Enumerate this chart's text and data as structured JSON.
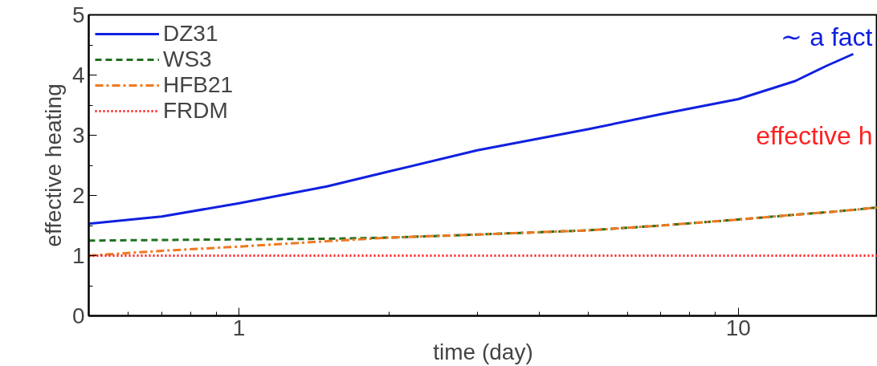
{
  "chart_data": {
    "type": "line",
    "xlabel": "time (day)",
    "ylabel": "effective heating",
    "log": "x",
    "xlim": [
      0.5,
      19
    ],
    "xticks": [
      1,
      10
    ],
    "ylim": [
      0,
      5
    ],
    "yticks": [
      0,
      1,
      2,
      3,
      4,
      5
    ],
    "grid": false,
    "legend": "top left",
    "marker": "none",
    "x": [
      0.5,
      0.7,
      1,
      1.5,
      2,
      3,
      5,
      7,
      10,
      13,
      15,
      17,
      19
    ],
    "series": [
      {
        "name": "DZ31",
        "color": "#1020e0",
        "line_style": "solid",
        "values": [
          1.53,
          1.65,
          1.87,
          2.15,
          2.4,
          2.75,
          3.1,
          3.35,
          3.6,
          3.9,
          4.15,
          4.35,
          null
        ]
      },
      {
        "name": "WS3",
        "color": "#207020",
        "line_style": "dashed",
        "values": [
          1.25,
          1.26,
          1.27,
          1.28,
          1.3,
          1.35,
          1.42,
          1.5,
          1.6,
          1.68,
          1.72,
          1.76,
          1.8
        ]
      },
      {
        "name": "HFB21",
        "color": "#f07820",
        "line_style": "dashdot",
        "values": [
          1.0,
          1.08,
          1.15,
          1.24,
          1.3,
          1.35,
          1.42,
          1.5,
          1.6,
          1.68,
          1.72,
          1.76,
          1.8
        ]
      },
      {
        "name": "FRDM",
        "color": "#ff2020",
        "line_style": "dotted",
        "values": [
          1,
          1,
          1,
          1,
          1,
          1,
          1,
          1,
          1,
          1,
          1,
          1,
          1
        ]
      }
    ],
    "annotations": [
      "∼ a fact",
      "effective h"
    ]
  }
}
